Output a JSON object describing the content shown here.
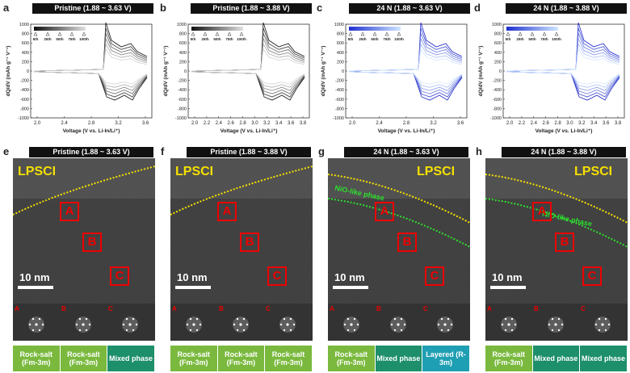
{
  "colors": {
    "rocksalt": "#7ab93e",
    "mixed": "#1d8f6a",
    "layered": "#1f9fb3",
    "red": "#e00000",
    "yellow": "#f5e000",
    "green": "#2ee02e"
  },
  "top_panels": [
    {
      "letter": "a",
      "title": "Pristine (1.88 ~ 3.63 V)",
      "ylabel": "dQ/dV (mAh g⁻¹ V⁻¹)",
      "xlabel": "Voltage (V vs. Li-In/Li⁺)",
      "xticks": [
        "2.0",
        "2.4",
        "2.8",
        "3.2",
        "3.6"
      ],
      "yticks": [
        "1000",
        "800",
        "600",
        "400",
        "200",
        "0",
        "-200",
        "-400",
        "-600",
        "-800",
        "-1000"
      ],
      "legend": [
        "5th",
        "25th",
        "50th",
        "75th",
        "100th"
      ],
      "color": "gray"
    },
    {
      "letter": "b",
      "title": "Pristine (1.88 ~ 3.88 V)",
      "ylabel": "dQ/dV (mAh g⁻¹ V⁻¹)",
      "xlabel": "Voltage (V vs. Li-In/Li⁺)",
      "xticks": [
        "2.0",
        "2.2",
        "2.4",
        "2.6",
        "2.8",
        "3.0",
        "3.2",
        "3.4",
        "3.6",
        "3.8"
      ],
      "yticks": [
        "1000",
        "800",
        "600",
        "400",
        "200",
        "0",
        "-200",
        "-400",
        "-600",
        "-800",
        "-1000"
      ],
      "legend": [
        "5th",
        "25th",
        "50th",
        "75th",
        "100th"
      ],
      "color": "gray"
    },
    {
      "letter": "c",
      "title": "24 N (1.88 ~ 3.63 V)",
      "ylabel": "dQ/dV (mAh g⁻¹ V⁻¹)",
      "xlabel": "Voltage (V vs. Li-In/Li⁺)",
      "xticks": [
        "2.0",
        "2.4",
        "2.8",
        "3.2",
        "3.6"
      ],
      "yticks": [
        "1000",
        "800",
        "600",
        "400",
        "200",
        "0",
        "-200",
        "-400",
        "-600",
        "-800",
        "-1000"
      ],
      "legend": [
        "5th",
        "25th",
        "50th",
        "75th",
        "100th"
      ],
      "color": "blue"
    },
    {
      "letter": "d",
      "title": "24 N (1.88 ~ 3.88 V)",
      "ylabel": "dQ/dV (mAh g⁻¹ V⁻¹)",
      "xlabel": "Voltage (V vs. Li-In/Li⁺)",
      "xticks": [
        "2.0",
        "2.2",
        "2.4",
        "2.6",
        "2.8",
        "3.0",
        "3.2",
        "3.4",
        "3.6",
        "3.8"
      ],
      "yticks": [
        "1000",
        "800",
        "600",
        "400",
        "200",
        "0",
        "-200",
        "-400",
        "-600",
        "-800",
        "-1000"
      ],
      "legend": [
        "5th",
        "25th",
        "50th",
        "75th",
        "100th"
      ],
      "color": "blue"
    }
  ],
  "bottom_panels": [
    {
      "letter": "e",
      "title": "Pristine (1.88 ~ 3.63 V)",
      "lpsci": "LPSCI",
      "scale": "10 nm",
      "boxes": [
        "A",
        "B",
        "C"
      ],
      "fft": [
        "A",
        "B",
        "C"
      ],
      "phases": [
        "Rock-salt (Fm-3m)",
        "Rock-salt (Fm-3m)",
        "Mixed phase"
      ],
      "phase_types": [
        "rocksalt",
        "rocksalt",
        "mixed"
      ]
    },
    {
      "letter": "f",
      "title": "Pristine (1.88 ~ 3.88 V)",
      "lpsci": "LPSCI",
      "scale": "10 nm",
      "boxes": [
        "A",
        "B",
        "C"
      ],
      "fft": [
        "A",
        "B",
        "C"
      ],
      "phases": [
        "Rock-salt (Fm-3m)",
        "Rock-salt (Fm-3m)",
        "Rock-salt (Fm-3m)"
      ],
      "phase_types": [
        "rocksalt",
        "rocksalt",
        "rocksalt"
      ]
    },
    {
      "letter": "g",
      "title": "24 N (1.88 ~ 3.63 V)",
      "lpsci": "LPSCI",
      "nio": "NiO-like phase",
      "scale": "10 nm",
      "boxes": [
        "A",
        "B",
        "C"
      ],
      "fft": [
        "A",
        "B",
        "C"
      ],
      "phases": [
        "Rock-salt (Fm-3m)",
        "Mixed phase",
        "Layered (R-3m)"
      ],
      "phase_types": [
        "rocksalt",
        "mixed",
        "layered"
      ]
    },
    {
      "letter": "h",
      "title": "24 N (1.88 ~ 3.88 V)",
      "lpsci": "LPSCI",
      "nio": "NiO-like phase",
      "scale": "10 nm",
      "boxes": [
        "A",
        "B",
        "C"
      ],
      "fft": [
        "A",
        "B",
        "C"
      ],
      "phases": [
        "Rock-salt (Fm-3m)",
        "Mixed phase",
        "Mixed phase"
      ],
      "phase_types": [
        "rocksalt",
        "mixed",
        "mixed"
      ]
    }
  ]
}
